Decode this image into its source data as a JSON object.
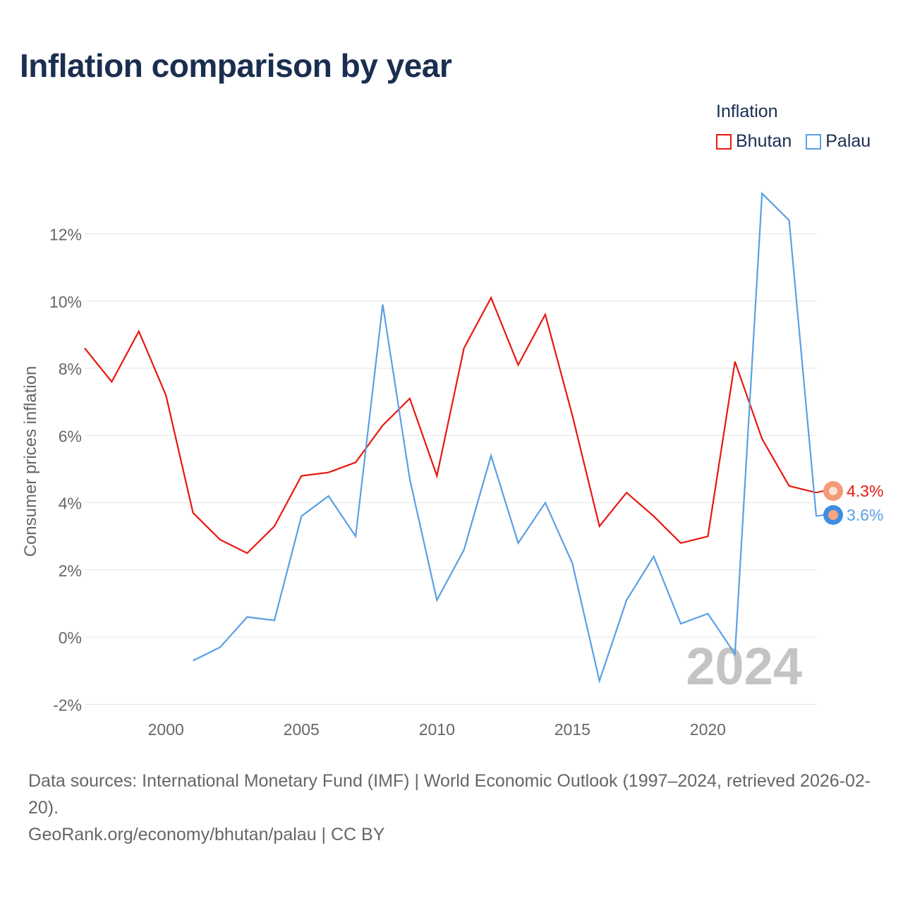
{
  "title": "Inflation comparison by year",
  "legend": {
    "title": "Inflation",
    "items": [
      {
        "label": "Bhutan",
        "color": "#e8170f"
      },
      {
        "label": "Palau",
        "color": "#5aa0e3"
      }
    ]
  },
  "footer": {
    "source": "Data sources: International Monetary Fund (IMF) | World Economic Outlook (1997–2024, retrieved 2026-02-20).",
    "credit": "GeoRank.org/economy/bhutan/palau | CC BY"
  },
  "chart_data": {
    "type": "line",
    "title": "Inflation comparison by year",
    "ylabel": "Consumer prices inflation",
    "xlabel": "",
    "xlim": [
      1997,
      2024
    ],
    "ylim": [
      -2.2,
      13.5
    ],
    "y_ticks": [
      -2,
      0,
      2,
      4,
      6,
      8,
      10,
      12
    ],
    "y_tick_labels": [
      "-2%",
      "0%",
      "2%",
      "4%",
      "6%",
      "8%",
      "10%",
      "12%"
    ],
    "x_ticks": [
      2000,
      2005,
      2010,
      2015,
      2020
    ],
    "x_tick_labels": [
      "2000",
      "2005",
      "2010",
      "2015",
      "2020"
    ],
    "grid": true,
    "year_label": "2024",
    "series": [
      {
        "name": "Bhutan",
        "color": "#e8170f",
        "end_label": "4.3%",
        "x": [
          1997,
          1998,
          1999,
          2000,
          2001,
          2002,
          2003,
          2004,
          2005,
          2006,
          2007,
          2008,
          2009,
          2010,
          2011,
          2012,
          2013,
          2014,
          2015,
          2016,
          2017,
          2018,
          2019,
          2020,
          2021,
          2022,
          2023,
          2024
        ],
        "values": [
          8.6,
          7.6,
          9.1,
          7.2,
          3.7,
          2.9,
          2.5,
          3.3,
          4.8,
          4.9,
          5.2,
          6.3,
          7.1,
          4.8,
          8.6,
          10.1,
          8.1,
          9.6,
          6.6,
          3.3,
          4.3,
          3.6,
          2.8,
          3.0,
          8.2,
          5.9,
          4.5,
          4.3
        ]
      },
      {
        "name": "Palau",
        "color": "#5aa0e3",
        "end_label": "3.6%",
        "x": [
          2001,
          2002,
          2003,
          2004,
          2005,
          2006,
          2007,
          2008,
          2009,
          2010,
          2011,
          2012,
          2013,
          2014,
          2015,
          2016,
          2017,
          2018,
          2019,
          2020,
          2021,
          2022,
          2023,
          2024
        ],
        "values": [
          -0.7,
          -0.3,
          0.6,
          0.5,
          3.6,
          4.2,
          3.0,
          9.9,
          4.7,
          1.1,
          2.6,
          5.4,
          2.8,
          4.0,
          2.2,
          -1.3,
          1.1,
          2.4,
          0.4,
          0.7,
          -0.5,
          13.2,
          12.4,
          3.6
        ]
      }
    ]
  }
}
